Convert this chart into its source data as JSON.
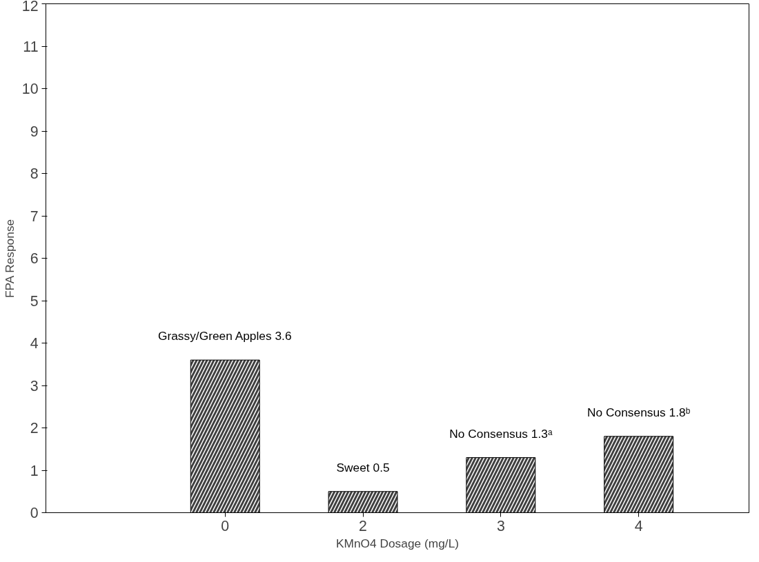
{
  "chart_data": {
    "type": "bar",
    "xlabel": "KMnO4 Dosage (mg/L)",
    "ylabel": "FPA Response",
    "categories": [
      "0",
      "2",
      "3",
      "4"
    ],
    "values": [
      3.6,
      0.5,
      1.3,
      1.8
    ],
    "color": "#404040",
    "value_labels": [
      "Grassy/Green Apples 3.6",
      "Sweet 0.5",
      "No Consensus 1.3ᵃ",
      "No Consensus 1.8ᵇ"
    ],
    "ylim": [
      0,
      12
    ],
    "yticks": [
      0,
      1,
      2,
      3,
      4,
      5,
      6,
      7,
      8,
      9,
      10,
      11,
      12
    ],
    "grid": false
  }
}
